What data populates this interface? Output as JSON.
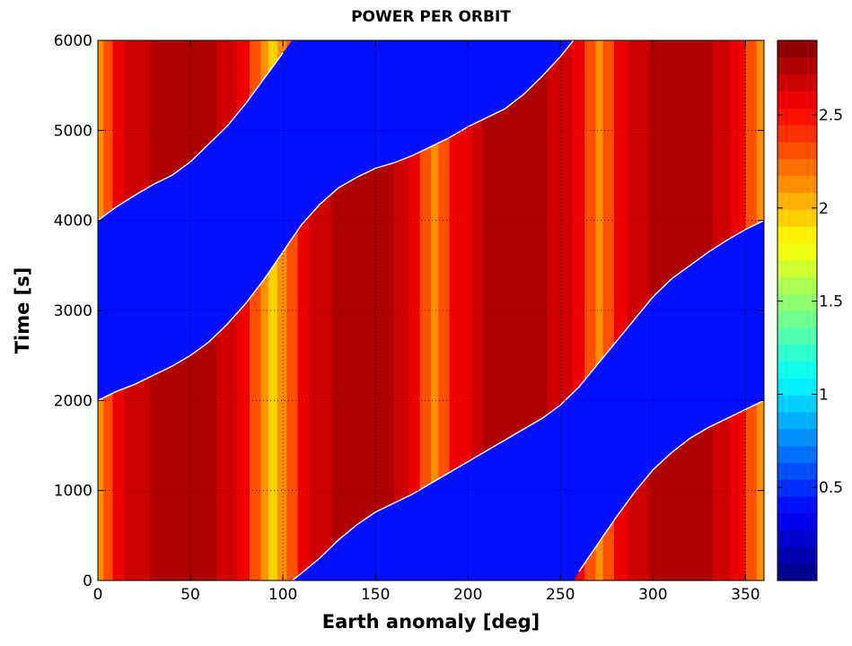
{
  "chart_data": {
    "type": "heatmap",
    "title": "POWER PER ORBIT",
    "xlabel": "Earth anomaly [deg]",
    "ylabel": "Time [s]",
    "xlim": [
      0,
      360
    ],
    "ylim": [
      0,
      6000
    ],
    "x_ticks": [
      0,
      50,
      100,
      150,
      200,
      250,
      300,
      350
    ],
    "y_ticks": [
      0,
      1000,
      2000,
      3000,
      4000,
      5000,
      6000
    ],
    "grid": true,
    "colorbar": {
      "ticks": [
        0.5,
        1,
        1.5,
        2,
        2.5
      ],
      "tick_labels": [
        "0.5",
        "1",
        "1.5",
        "2",
        "2.5"
      ],
      "range": [
        0,
        2.9
      ],
      "colormap": "jet",
      "levels": 32
    },
    "eclipse_value": 0.4,
    "vertical_bands": [
      {
        "x0": 0,
        "x1": 3,
        "value": 2.15
      },
      {
        "x0": 3,
        "x1": 8,
        "value": 2.35
      },
      {
        "x0": 8,
        "x1": 14,
        "value": 2.55
      },
      {
        "x0": 14,
        "x1": 28,
        "value": 2.68
      },
      {
        "x0": 28,
        "x1": 64,
        "value": 2.8
      },
      {
        "x0": 64,
        "x1": 75,
        "value": 2.68
      },
      {
        "x0": 75,
        "x1": 82,
        "value": 2.55
      },
      {
        "x0": 82,
        "x1": 88,
        "value": 2.35
      },
      {
        "x0": 88,
        "x1": 92,
        "value": 2.15
      },
      {
        "x0": 92,
        "x1": 97,
        "value": 1.95
      },
      {
        "x0": 97,
        "x1": 102,
        "value": 2.15
      },
      {
        "x0": 102,
        "x1": 108,
        "value": 2.35
      },
      {
        "x0": 108,
        "x1": 114,
        "value": 2.55
      },
      {
        "x0": 114,
        "x1": 126,
        "value": 2.68
      },
      {
        "x0": 126,
        "x1": 160,
        "value": 2.8
      },
      {
        "x0": 160,
        "x1": 168,
        "value": 2.68
      },
      {
        "x0": 168,
        "x1": 174,
        "value": 2.55
      },
      {
        "x0": 174,
        "x1": 180,
        "value": 2.35
      },
      {
        "x0": 180,
        "x1": 184,
        "value": 2.15
      },
      {
        "x0": 184,
        "x1": 190,
        "value": 2.35
      },
      {
        "x0": 190,
        "x1": 202,
        "value": 2.55
      },
      {
        "x0": 202,
        "x1": 208,
        "value": 2.68
      },
      {
        "x0": 208,
        "x1": 243,
        "value": 2.8
      },
      {
        "x0": 243,
        "x1": 256,
        "value": 2.68
      },
      {
        "x0": 256,
        "x1": 263,
        "value": 2.55
      },
      {
        "x0": 263,
        "x1": 269,
        "value": 2.35
      },
      {
        "x0": 269,
        "x1": 273,
        "value": 2.15
      },
      {
        "x0": 273,
        "x1": 279,
        "value": 2.35
      },
      {
        "x0": 279,
        "x1": 286,
        "value": 2.55
      },
      {
        "x0": 286,
        "x1": 298,
        "value": 2.68
      },
      {
        "x0": 298,
        "x1": 332,
        "value": 2.8
      },
      {
        "x0": 332,
        "x1": 342,
        "value": 2.68
      },
      {
        "x0": 342,
        "x1": 350,
        "value": 2.55
      },
      {
        "x0": 350,
        "x1": 356,
        "value": 2.35
      },
      {
        "x0": 356,
        "x1": 360,
        "value": 2.15
      }
    ],
    "eclipse_bands": [
      {
        "lower": [
          [
            0,
            2000
          ],
          [
            10,
            2100
          ],
          [
            20,
            2180
          ],
          [
            30,
            2280
          ],
          [
            40,
            2380
          ],
          [
            50,
            2500
          ],
          [
            60,
            2650
          ],
          [
            70,
            2850
          ],
          [
            80,
            3080
          ],
          [
            90,
            3350
          ],
          [
            100,
            3650
          ],
          [
            105,
            3800
          ],
          [
            110,
            3950
          ],
          [
            120,
            4180
          ],
          [
            130,
            4360
          ],
          [
            140,
            4480
          ],
          [
            150,
            4580
          ],
          [
            160,
            4640
          ],
          [
            170,
            4720
          ],
          [
            180,
            4820
          ],
          [
            190,
            4920
          ],
          [
            200,
            5040
          ],
          [
            210,
            5140
          ],
          [
            220,
            5240
          ],
          [
            230,
            5400
          ],
          [
            240,
            5600
          ],
          [
            250,
            5820
          ],
          [
            257,
            6000
          ]
        ],
        "upper": [
          [
            257,
            6000
          ],
          [
            105,
            6000
          ],
          [
            100,
            5860
          ],
          [
            90,
            5580
          ],
          [
            80,
            5300
          ],
          [
            70,
            5050
          ],
          [
            60,
            4850
          ],
          [
            50,
            4650
          ],
          [
            40,
            4500
          ],
          [
            30,
            4400
          ],
          [
            20,
            4280
          ],
          [
            10,
            4150
          ],
          [
            0,
            4000
          ]
        ]
      },
      {
        "lower": [
          [
            105,
            0
          ],
          [
            110,
            80
          ],
          [
            120,
            250
          ],
          [
            130,
            450
          ],
          [
            140,
            620
          ],
          [
            150,
            760
          ],
          [
            160,
            860
          ],
          [
            170,
            960
          ],
          [
            180,
            1080
          ],
          [
            190,
            1200
          ],
          [
            200,
            1320
          ],
          [
            210,
            1440
          ],
          [
            220,
            1560
          ],
          [
            230,
            1680
          ],
          [
            240,
            1800
          ],
          [
            250,
            1950
          ],
          [
            260,
            2150
          ],
          [
            270,
            2400
          ],
          [
            280,
            2650
          ],
          [
            290,
            2900
          ],
          [
            300,
            3150
          ],
          [
            310,
            3350
          ],
          [
            320,
            3500
          ],
          [
            330,
            3650
          ],
          [
            340,
            3780
          ],
          [
            350,
            3900
          ],
          [
            360,
            4000
          ]
        ],
        "upper": [
          [
            360,
            2000
          ],
          [
            350,
            1900
          ],
          [
            340,
            1800
          ],
          [
            330,
            1700
          ],
          [
            320,
            1580
          ],
          [
            310,
            1420
          ],
          [
            300,
            1230
          ],
          [
            290,
            980
          ],
          [
            280,
            700
          ],
          [
            270,
            400
          ],
          [
            260,
            100
          ],
          [
            257,
            0
          ]
        ]
      }
    ]
  }
}
